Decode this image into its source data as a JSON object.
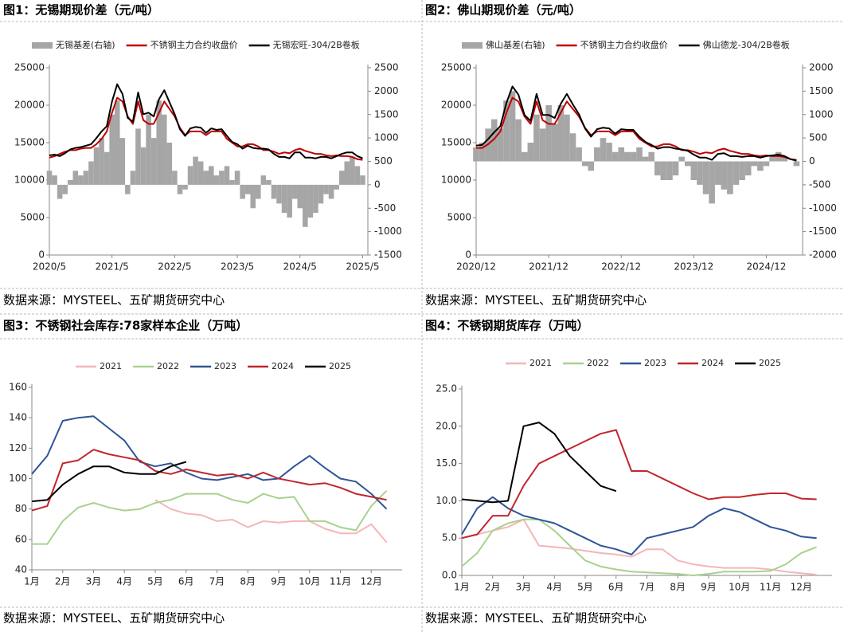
{
  "chart_data": [
    {
      "type": "combo",
      "title": "图1：无锡期现价差（元/吨）",
      "source": "数据来源：MYSTEEL、五矿期货研究中心",
      "categories": [
        "2020/5",
        null,
        null,
        null,
        null,
        null,
        null,
        null,
        null,
        null,
        null,
        null,
        "2021/5",
        null,
        null,
        null,
        null,
        null,
        null,
        null,
        null,
        null,
        null,
        null,
        "2022/5",
        null,
        null,
        null,
        null,
        null,
        null,
        null,
        null,
        null,
        null,
        null,
        "2023/5",
        null,
        null,
        null,
        null,
        null,
        null,
        null,
        null,
        null,
        null,
        null,
        "2024/5",
        null,
        null,
        null,
        null,
        null,
        null,
        null,
        null,
        null,
        null,
        null,
        "2025/5"
      ],
      "ylim": [
        0,
        25000
      ],
      "yticks": [
        0,
        5000,
        10000,
        15000,
        20000,
        25000
      ],
      "y2lim": [
        -1500,
        2500
      ],
      "y2ticks": [
        -1500,
        -1000,
        -500,
        0,
        500,
        1000,
        1500,
        2000,
        2500
      ],
      "series": [
        {
          "name": "无锡基差(右轴)",
          "type": "bar",
          "axis": "y2",
          "color": "#a6a6a6",
          "values": [
            300,
            200,
            -300,
            -200,
            100,
            300,
            200,
            300,
            500,
            800,
            1000,
            700,
            1500,
            1800,
            1000,
            -200,
            300,
            1200,
            800,
            1500,
            1000,
            1800,
            1500,
            900,
            300,
            -200,
            -100,
            400,
            600,
            500,
            300,
            400,
            200,
            300,
            400,
            100,
            300,
            -300,
            -200,
            -500,
            -300,
            200,
            100,
            -300,
            -400,
            -600,
            -700,
            -300,
            -500,
            -900,
            -700,
            -600,
            -400,
            -200,
            -300,
            -100,
            300,
            500,
            600,
            400,
            200
          ]
        },
        {
          "name": "不锈钢主力合约收盘价",
          "type": "line",
          "color": "#c00000",
          "values": [
            13000,
            13200,
            13500,
            13800,
            14000,
            14000,
            14200,
            14300,
            14300,
            14800,
            15500,
            16500,
            19000,
            21000,
            20500,
            18500,
            17500,
            20500,
            18000,
            17500,
            17500,
            19000,
            20500,
            19500,
            18500,
            17000,
            16000,
            16500,
            16500,
            16500,
            16000,
            16500,
            16500,
            16500,
            15500,
            15000,
            14500,
            14500,
            14800,
            14800,
            14500,
            14000,
            14000,
            13800,
            13500,
            13700,
            13600,
            14000,
            14200,
            13900,
            13700,
            13500,
            13500,
            13300,
            13200,
            13300,
            13200,
            13200,
            13100,
            12800,
            12700
          ]
        },
        {
          "name": "无锡宏旺-304/2B卷板",
          "type": "line",
          "color": "#000000",
          "values": [
            13300,
            13400,
            13200,
            13600,
            14100,
            14300,
            14400,
            14600,
            14800,
            15600,
            16500,
            17200,
            20500,
            22800,
            21500,
            18300,
            17800,
            21700,
            18800,
            19000,
            18500,
            20800,
            22000,
            20400,
            18800,
            16800,
            15900,
            16900,
            17100,
            17000,
            16300,
            16900,
            16700,
            16800,
            15900,
            15100,
            14800,
            14200,
            14600,
            14300,
            14200,
            14200,
            14100,
            13500,
            13100,
            13100,
            12900,
            13700,
            13700,
            13000,
            13000,
            12900,
            13100,
            13100,
            12900,
            13200,
            13500,
            13700,
            13700,
            13200,
            12900
          ]
        }
      ]
    },
    {
      "type": "combo",
      "title": "图2：佛山期现价差（元/吨）",
      "source": "数据来源：MYSTEEL、五矿期货研究中心",
      "categories": [
        "2020/12",
        null,
        null,
        null,
        null,
        null,
        null,
        null,
        null,
        null,
        null,
        null,
        "2021/12",
        null,
        null,
        null,
        null,
        null,
        null,
        null,
        null,
        null,
        null,
        null,
        "2022/12",
        null,
        null,
        null,
        null,
        null,
        null,
        null,
        null,
        null,
        null,
        null,
        "2023/12",
        null,
        null,
        null,
        null,
        null,
        null,
        null,
        null,
        null,
        null,
        null,
        "2024/12",
        null,
        null,
        null,
        null,
        null
      ],
      "ylim": [
        0,
        25000
      ],
      "yticks": [
        0,
        5000,
        10000,
        15000,
        20000,
        25000
      ],
      "y2lim": [
        -2000,
        2000
      ],
      "y2ticks": [
        -2000,
        -1500,
        -1000,
        -500,
        0,
        500,
        1000,
        1500,
        2000
      ],
      "series": [
        {
          "name": "佛山基差(右轴)",
          "type": "bar",
          "axis": "y2",
          "color": "#a6a6a6",
          "values": [
            300,
            400,
            700,
            900,
            700,
            1300,
            1500,
            900,
            200,
            400,
            1000,
            700,
            1200,
            800,
            1200,
            1000,
            600,
            300,
            -100,
            -200,
            300,
            500,
            400,
            200,
            300,
            200,
            200,
            300,
            100,
            200,
            -300,
            -400,
            -400,
            -300,
            100,
            -100,
            -400,
            -500,
            -700,
            -900,
            -500,
            -600,
            -700,
            -500,
            -400,
            -300,
            -100,
            -200,
            -100,
            100,
            200,
            100,
            0,
            -100
          ]
        },
        {
          "name": "不锈钢主力合约收盘价",
          "type": "line",
          "color": "#c00000",
          "values": [
            14300,
            14300,
            14800,
            15500,
            16500,
            19000,
            21000,
            20500,
            18500,
            17500,
            20500,
            18000,
            17500,
            17500,
            19000,
            20500,
            19500,
            18500,
            17000,
            16000,
            16500,
            16500,
            16500,
            16000,
            16500,
            16500,
            16500,
            15500,
            15000,
            14500,
            14500,
            14800,
            14800,
            14500,
            14000,
            14000,
            13800,
            13500,
            13700,
            13600,
            14000,
            14200,
            13900,
            13700,
            13500,
            13500,
            13300,
            13200,
            13300,
            13200,
            13200,
            13100,
            12800,
            12700
          ]
        },
        {
          "name": "佛山德龙-304/2B卷板",
          "type": "line",
          "color": "#000000",
          "values": [
            14600,
            14700,
            15500,
            16400,
            17200,
            20300,
            22500,
            21400,
            18700,
            17900,
            21500,
            18700,
            18700,
            18300,
            20200,
            21500,
            20100,
            18800,
            16900,
            15800,
            16800,
            17000,
            16900,
            16200,
            16800,
            16700,
            16700,
            15800,
            15100,
            14700,
            14200,
            14400,
            14400,
            14200,
            14100,
            13900,
            13400,
            13000,
            13000,
            12700,
            13500,
            13600,
            13200,
            13200,
            13100,
            13200,
            13200,
            13000,
            13200,
            13300,
            13400,
            13200,
            12800,
            12600
          ]
        }
      ]
    },
    {
      "type": "line",
      "title": "图3：不锈钢社会库存:78家样本企业（万吨）",
      "source": "数据来源：MYSTEEL、五矿期货研究中心",
      "categories": [
        "1月",
        null,
        "2月",
        null,
        "3月",
        null,
        "4月",
        null,
        "5月",
        null,
        "6月",
        null,
        "7月",
        null,
        "8月",
        null,
        "9月",
        null,
        "10月",
        null,
        "11月",
        null,
        "12月",
        null
      ],
      "ylim": [
        40,
        160
      ],
      "yticks": [
        40,
        60,
        80,
        100,
        120,
        140,
        160
      ],
      "series": [
        {
          "name": "2021",
          "color": "#f4b6b8",
          "values": [
            null,
            null,
            null,
            null,
            null,
            null,
            null,
            null,
            86,
            80,
            77,
            76,
            72,
            73,
            68,
            72,
            71,
            72,
            72,
            67,
            64,
            64,
            70,
            58
          ]
        },
        {
          "name": "2022",
          "color": "#a9d18e",
          "values": [
            57,
            57,
            72,
            81,
            84,
            81,
            79,
            80,
            84,
            86,
            90,
            90,
            90,
            86,
            84,
            90,
            87,
            88,
            72,
            72,
            68,
            66,
            82,
            92
          ]
        },
        {
          "name": "2023",
          "color": "#2f5597",
          "values": [
            103,
            115,
            138,
            140,
            141,
            133,
            125,
            111,
            108,
            110,
            104,
            100,
            99,
            101,
            103,
            99,
            100,
            108,
            115,
            107,
            100,
            98,
            90,
            80
          ]
        },
        {
          "name": "2024",
          "color": "#c0272d",
          "values": [
            79,
            82,
            110,
            112,
            119,
            116,
            114,
            112,
            105,
            103,
            106,
            104,
            102,
            103,
            100,
            104,
            100,
            98,
            96,
            97,
            94,
            90,
            88,
            86
          ]
        },
        {
          "name": "2025",
          "color": "#000000",
          "values": [
            85,
            86,
            96,
            103,
            108,
            108,
            104,
            103,
            103,
            108,
            111,
            null,
            null,
            null,
            null,
            null,
            null,
            null,
            null,
            null,
            null,
            null,
            null,
            null
          ]
        }
      ]
    },
    {
      "type": "line",
      "title": "图4：不锈钢期货库存（万吨）",
      "source": "数据来源：MYSTEEL、五矿期货研究中心",
      "categories": [
        "1月",
        null,
        "2月",
        null,
        "3月",
        null,
        "4月",
        null,
        "5月",
        null,
        "6月",
        null,
        "7月",
        null,
        "8月",
        null,
        "9月",
        null,
        "10月",
        null,
        "11月",
        null,
        "12月",
        null
      ],
      "ylim": [
        0,
        25
      ],
      "yticks": [
        {
          "value": 0,
          "label": "0.0"
        },
        {
          "value": 5,
          "label": "5.0"
        },
        {
          "value": 10,
          "label": "10.0"
        },
        {
          "value": 15,
          "label": "15.0"
        },
        {
          "value": 20,
          "label": "20.0"
        },
        {
          "value": 25,
          "label": "25.0"
        }
      ],
      "series": [
        {
          "name": "2021",
          "color": "#f4b6b8",
          "values": [
            5,
            5.5,
            6,
            6.5,
            7.5,
            4,
            3.8,
            3.6,
            3.3,
            3,
            2.8,
            2.5,
            3.5,
            3.5,
            2,
            1.5,
            1.2,
            1,
            1,
            1,
            0.8,
            0.5,
            0.3,
            0.1
          ]
        },
        {
          "name": "2022",
          "color": "#a9d18e",
          "values": [
            1.2,
            3,
            6,
            7,
            7.5,
            7.5,
            6,
            4,
            2,
            1.2,
            0.8,
            0.5,
            0.4,
            0.3,
            0.2,
            0,
            0.2,
            0.5,
            0.5,
            0.5,
            0.6,
            1.5,
            3,
            3.8
          ]
        },
        {
          "name": "2023",
          "color": "#2f5597",
          "values": [
            5.5,
            9,
            10.5,
            9,
            8,
            7.5,
            7,
            6,
            5,
            4,
            3.5,
            2.8,
            5,
            5.5,
            6,
            6.5,
            8,
            9,
            8.5,
            7.5,
            6.5,
            6,
            5.2,
            5
          ]
        },
        {
          "name": "2024",
          "color": "#c0272d",
          "values": [
            5,
            5.5,
            8,
            8,
            12,
            15,
            16,
            17,
            18,
            19,
            19.5,
            14,
            14,
            13,
            12,
            11,
            10.2,
            10.5,
            10.5,
            10.8,
            11,
            11,
            10.3,
            10.2
          ]
        },
        {
          "name": "2025",
          "color": "#000000",
          "values": [
            10.2,
            10,
            9.8,
            10,
            20,
            20.5,
            19,
            16,
            14,
            12,
            11.3,
            null,
            null,
            null,
            null,
            null,
            null,
            null,
            null,
            null,
            null,
            null,
            null,
            null
          ]
        }
      ]
    }
  ]
}
